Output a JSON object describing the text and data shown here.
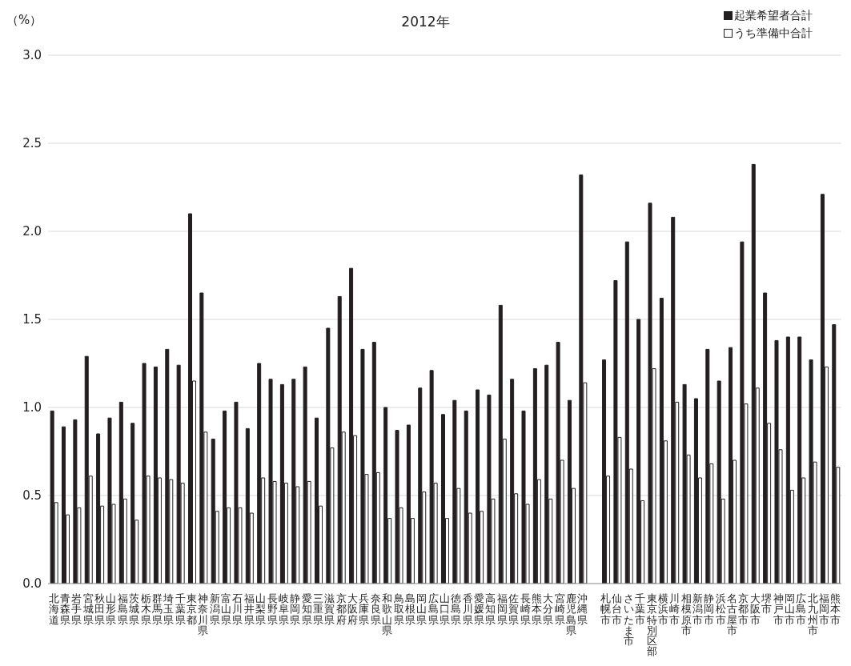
{
  "chart_data": {
    "type": "bar",
    "title": "2012年",
    "ylabel": "（%）",
    "categories": [
      "北海道",
      "青森県",
      "岩手県",
      "宮城県",
      "秋田県",
      "山形県",
      "福島県",
      "茨城県",
      "栃木県",
      "群馬県",
      "埼玉県",
      "千葉県",
      "東京都",
      "神奈川県",
      "新潟県",
      "富山県",
      "石川県",
      "福井県",
      "山梨県",
      "長野県",
      "岐阜県",
      "静岡県",
      "愛知県",
      "三重県",
      "滋賀県",
      "京都府",
      "大阪府",
      "兵庫県",
      "奈良県",
      "和歌山県",
      "鳥取県",
      "島根県",
      "岡山県",
      "広島県",
      "山口県",
      "徳島県",
      "香川県",
      "愛媛県",
      "高知県",
      "福岡県",
      "佐賀県",
      "長崎県",
      "熊本県",
      "大分県",
      "宮崎県",
      "鹿児島県",
      "沖縄県",
      null,
      "札幌市",
      "仙台市",
      "さいたま市",
      "千葉市",
      "東京特別区部",
      "横浜市",
      "川崎市",
      "相模原市",
      "新潟市",
      "静岡市",
      "浜松市",
      "名古屋市",
      "京都市",
      "大阪市",
      "堺市",
      "神戸市",
      "岡山市",
      "広島市",
      "北九州市",
      "福岡市",
      "熊本市"
    ],
    "series": [
      {
        "name": "起業希望者合計",
        "color": "#231f20",
        "values": [
          0.98,
          0.89,
          0.93,
          1.29,
          0.85,
          0.94,
          1.03,
          0.91,
          1.25,
          1.23,
          1.33,
          1.24,
          2.1,
          1.65,
          0.82,
          0.98,
          1.03,
          0.88,
          1.25,
          1.16,
          1.13,
          1.16,
          1.23,
          0.94,
          1.45,
          1.63,
          1.79,
          1.33,
          1.37,
          1.0,
          0.87,
          0.9,
          1.11,
          1.21,
          0.96,
          1.04,
          0.98,
          1.1,
          1.07,
          1.58,
          1.16,
          0.98,
          1.22,
          1.24,
          1.37,
          1.04,
          2.32,
          null,
          1.27,
          1.72,
          1.94,
          1.5,
          2.16,
          1.62,
          2.08,
          1.13,
          1.05,
          1.33,
          1.15,
          1.34,
          1.94,
          2.38,
          1.65,
          1.38,
          1.4,
          1.4,
          1.27,
          2.21,
          1.47
        ]
      },
      {
        "name": "うち準備中合計",
        "color": "#ffffff",
        "values": [
          0.46,
          0.39,
          0.43,
          0.61,
          0.44,
          0.45,
          0.48,
          0.36,
          0.61,
          0.6,
          0.59,
          0.57,
          1.15,
          0.86,
          0.41,
          0.43,
          0.43,
          0.4,
          0.6,
          0.58,
          0.57,
          0.55,
          0.58,
          0.44,
          0.77,
          0.86,
          0.84,
          0.62,
          0.63,
          0.37,
          0.43,
          0.37,
          0.52,
          0.57,
          0.37,
          0.54,
          0.4,
          0.41,
          0.48,
          0.82,
          0.51,
          0.45,
          0.59,
          0.48,
          0.7,
          0.54,
          1.14,
          null,
          0.61,
          0.83,
          0.65,
          0.47,
          1.22,
          0.81,
          1.03,
          0.73,
          0.6,
          0.68,
          0.48,
          0.7,
          1.02,
          1.11,
          0.91,
          0.76,
          0.53,
          0.6,
          0.69,
          1.23,
          0.66
        ]
      }
    ],
    "ylim": [
      0,
      3
    ],
    "yticks": [
      {
        "value": 0,
        "label": "0.0"
      },
      {
        "value": 0.5,
        "label": "0.5"
      },
      {
        "value": 1,
        "label": "1.0"
      },
      {
        "value": 1.5,
        "label": "1.5"
      },
      {
        "value": 2,
        "label": "2.0"
      },
      {
        "value": 2.5,
        "label": "2.5"
      },
      {
        "value": 3,
        "label": "3.0"
      }
    ],
    "grid": "y",
    "legend": "top right"
  }
}
